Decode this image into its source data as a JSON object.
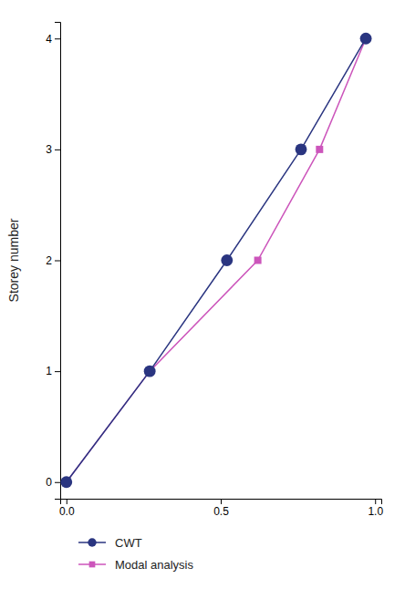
{
  "chart_data": {
    "type": "line",
    "ylabel": "Storey number",
    "series": [
      {
        "name": "CWT",
        "color": "#2a3580",
        "marker": "circle",
        "x": [
          0.0,
          0.27,
          0.52,
          0.76,
          0.97
        ],
        "values": [
          0,
          1,
          2,
          3,
          4
        ]
      },
      {
        "name": "Modal analysis",
        "color": "#cc55bb",
        "marker": "square",
        "x": [
          0.0,
          0.27,
          0.62,
          0.82,
          0.97
        ],
        "values": [
          0,
          1,
          2,
          3,
          4
        ]
      }
    ],
    "xlim": [
      -0.02,
      1.02
    ],
    "xticks": [
      {
        "value": 0,
        "label": "0.0"
      },
      {
        "value": 0.5,
        "label": "0.5"
      },
      {
        "value": 1,
        "label": "1.0"
      }
    ],
    "ylim": [
      -0.15,
      4.15
    ],
    "yticks": [
      0,
      1,
      2,
      3,
      4
    ],
    "grid": false,
    "legend": "bottom"
  }
}
